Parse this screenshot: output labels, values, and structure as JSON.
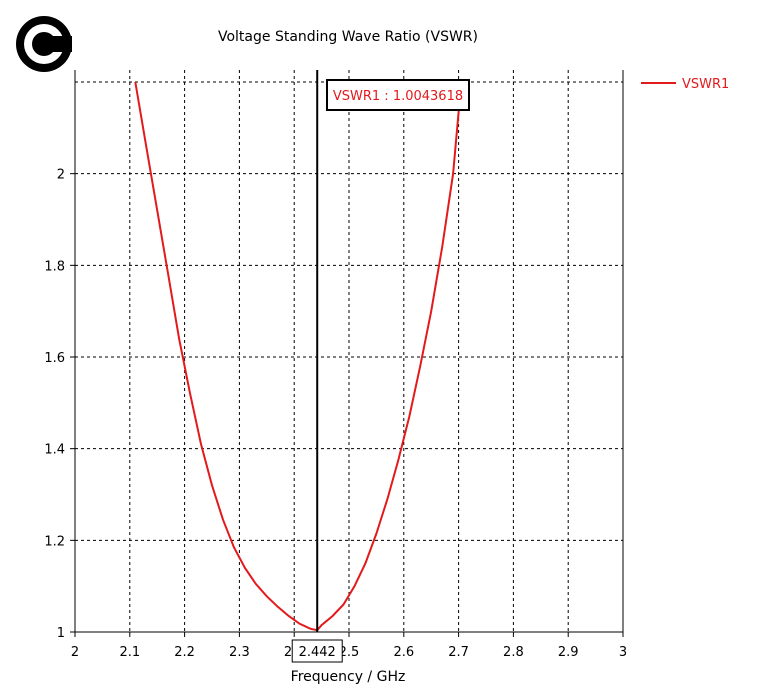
{
  "logo": {
    "name": "copyright-logo"
  },
  "chart_data": {
    "type": "line",
    "title": "Voltage Standing Wave Ratio (VSWR)",
    "xlabel": "Frequency / GHz",
    "ylabel": "",
    "xlim": [
      2,
      3
    ],
    "ylim": [
      1,
      2.2
    ],
    "x_ticks": [
      2,
      2.1,
      2.2,
      2.3,
      2.4,
      2.5,
      2.6,
      2.7,
      2.8,
      2.9,
      3
    ],
    "x_tick_labels": [
      "2",
      "2.1",
      "2.2",
      "2.3",
      "2.4",
      "2.5",
      "2.6",
      "2.7",
      "2.8",
      "2.9",
      "3"
    ],
    "y_ticks": [
      1,
      1.2,
      1.4,
      1.6,
      1.8,
      2
    ],
    "y_tick_labels": [
      "1",
      "1.2",
      "1.4",
      "1.6",
      "1.8",
      "2"
    ],
    "grid": true,
    "legend_position": "right",
    "series": [
      {
        "name": "VSWR1",
        "color": "#e31a1c",
        "x": [
          2.11,
          2.13,
          2.15,
          2.17,
          2.19,
          2.21,
          2.23,
          2.25,
          2.27,
          2.29,
          2.31,
          2.33,
          2.35,
          2.37,
          2.39,
          2.41,
          2.43,
          2.442,
          2.45,
          2.47,
          2.49,
          2.51,
          2.53,
          2.55,
          2.57,
          2.59,
          2.61,
          2.63,
          2.65,
          2.67,
          2.69,
          2.705
        ],
        "y": [
          2.2,
          2.06,
          1.92,
          1.78,
          1.64,
          1.52,
          1.41,
          1.32,
          1.245,
          1.185,
          1.14,
          1.105,
          1.078,
          1.055,
          1.035,
          1.018,
          1.007,
          1.004,
          1.015,
          1.035,
          1.06,
          1.1,
          1.15,
          1.215,
          1.29,
          1.375,
          1.47,
          1.58,
          1.7,
          1.84,
          2.0,
          2.2
        ]
      }
    ],
    "marker": {
      "x": 2.442,
      "x_label": "2.442",
      "annotation": "VSWR1 : 1.0043618"
    }
  }
}
